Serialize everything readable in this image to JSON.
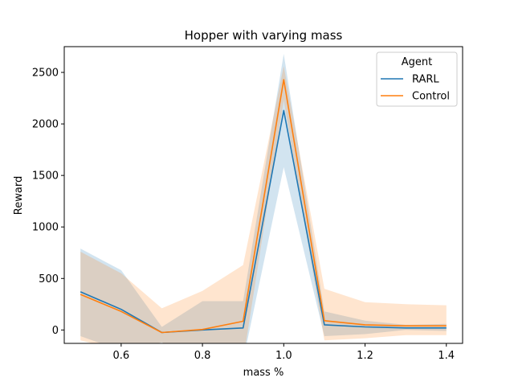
{
  "chart_data": {
    "type": "line",
    "title": "Hopper with varying mass",
    "xlabel": "mass %",
    "ylabel": "Reward",
    "xlim": [
      0.46,
      1.44
    ],
    "ylim": [
      -130,
      2750
    ],
    "xticks": [
      0.6,
      0.8,
      1.0,
      1.2,
      1.4
    ],
    "xtick_labels": [
      "0.6",
      "0.8",
      "1.0",
      "1.2",
      "1.4"
    ],
    "yticks": [
      0,
      500,
      1000,
      1500,
      2000,
      2500
    ],
    "ytick_labels": [
      "0",
      "500",
      "1000",
      "1500",
      "2000",
      "2500"
    ],
    "grid": false,
    "legend": {
      "title": "Agent",
      "placement": "top-right"
    },
    "x": [
      0.5,
      0.6,
      0.7,
      0.8,
      0.9,
      1.0,
      1.1,
      1.2,
      1.3,
      1.4
    ],
    "series": [
      {
        "name": "RARL",
        "color": "#1f77b4",
        "values": [
          370,
          200,
          -25,
          0,
          20,
          2130,
          50,
          30,
          20,
          20
        ],
        "lower": [
          -60,
          -200,
          -120,
          -300,
          -300,
          1580,
          -60,
          -40,
          0,
          -10
        ],
        "upper": [
          790,
          580,
          30,
          280,
          280,
          2680,
          180,
          90,
          50,
          60
        ]
      },
      {
        "name": "Control",
        "color": "#ff7f0e",
        "values": [
          345,
          180,
          -25,
          5,
          85,
          2430,
          90,
          50,
          40,
          40
        ],
        "lower": [
          -100,
          -200,
          -120,
          -300,
          -300,
          2230,
          -100,
          -80,
          -50,
          -50
        ],
        "upper": [
          760,
          550,
          210,
          380,
          630,
          2560,
          400,
          270,
          250,
          240
        ]
      }
    ]
  }
}
